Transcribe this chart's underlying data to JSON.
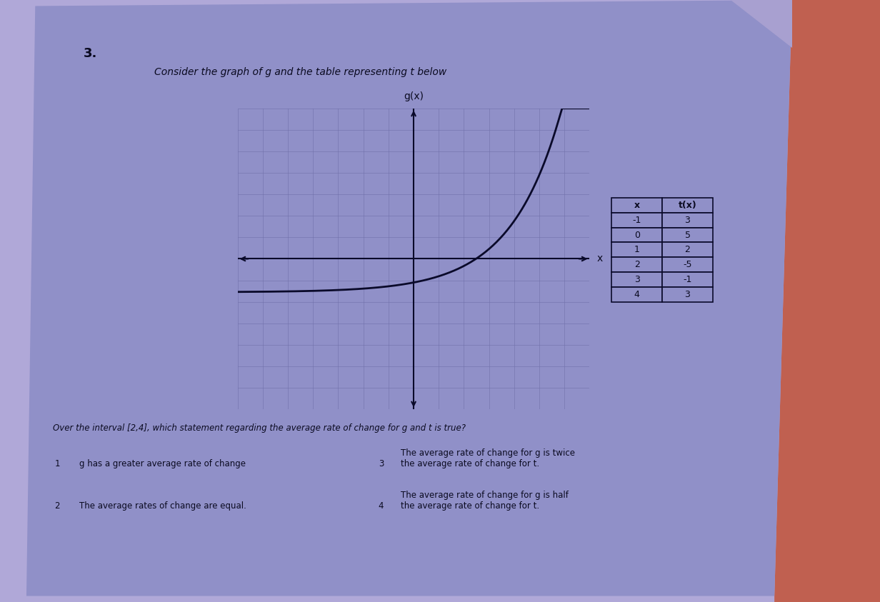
{
  "bg_color": "#b0a8d8",
  "paper_color": "#9090c8",
  "red_color": "#cc5533",
  "question_number": "3.",
  "title_text": "Consider the graph of g and the table representing t below",
  "graph_ylabel": "g(x)",
  "graph_xlabel": "x",
  "table_headers": [
    "x",
    "t(x)"
  ],
  "table_data": [
    [
      -1,
      3
    ],
    [
      0,
      5
    ],
    [
      1,
      2
    ],
    [
      2,
      -5
    ],
    [
      3,
      -1
    ],
    [
      4,
      3
    ]
  ],
  "question_text": "Over the interval [2,4], which statement regarding the average rate of change for g and t is true?",
  "opt1_num": "1",
  "opt1_text": "g has a greater average rate of change",
  "opt2_num": "2",
  "opt2_text": "The average rates of change are equal.",
  "opt3_num": "3",
  "opt3_text": "The average rate of change for g is twice\nthe average rate of change for t.",
  "opt4_num": "4",
  "opt4_text": "The average rate of change for g is half\nthe average rate of change for t.",
  "grid_color": "#7070aa",
  "curve_color": "#0a0a2a",
  "axis_color": "#0a0a2a",
  "text_color": "#0a0a20",
  "table_border_color": "#0a0a2a",
  "xlim": [
    -7,
    7
  ],
  "ylim": [
    -7,
    7
  ]
}
